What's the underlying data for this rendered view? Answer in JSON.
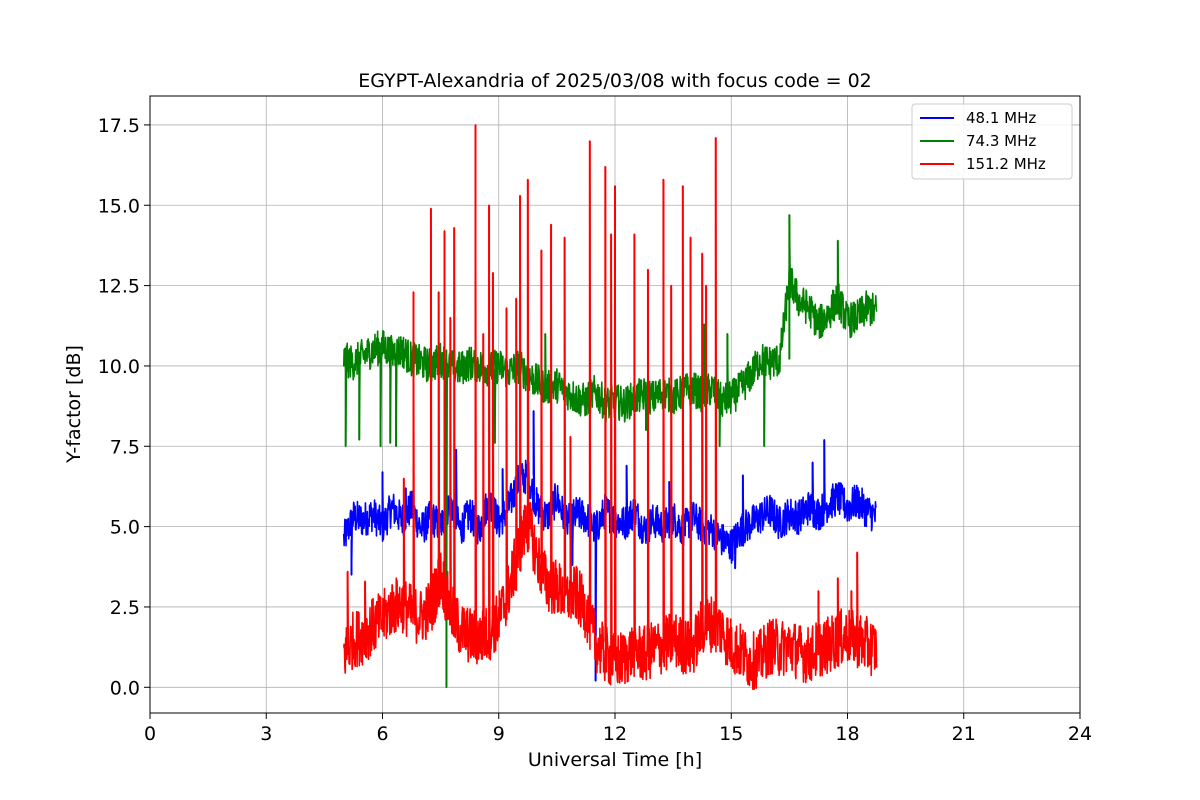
{
  "chart_data": {
    "type": "line",
    "title": "EGYPT-Alexandria of 2025/03/08 with focus code = 02",
    "xlabel": "Universal Time [h]",
    "ylabel": "Y-factor [dB]",
    "xlim": [
      0,
      24
    ],
    "ylim": [
      -0.8,
      18.4
    ],
    "xticks": [
      0,
      3,
      6,
      9,
      12,
      15,
      18,
      21,
      24
    ],
    "xtick_labels": [
      "0",
      "3",
      "6",
      "9",
      "12",
      "15",
      "18",
      "21",
      "24"
    ],
    "yticks": [
      0,
      2.5,
      5,
      7.5,
      10,
      12.5,
      15,
      17.5
    ],
    "ytick_labels": [
      "0.0",
      "2.5",
      "5.0",
      "7.5",
      "10.0",
      "12.5",
      "15.0",
      "17.5"
    ],
    "grid": true,
    "legend_position": "top-right",
    "series": [
      {
        "name": " 48.1 MHz",
        "color": "#0000ff",
        "x": [
          5.0,
          5.25,
          5.5,
          5.75,
          6.0,
          6.25,
          6.5,
          6.75,
          7.0,
          7.25,
          7.5,
          7.75,
          8.0,
          8.25,
          8.5,
          8.75,
          9.0,
          9.25,
          9.5,
          9.75,
          10.0,
          10.25,
          10.5,
          10.75,
          11.0,
          11.25,
          11.5,
          11.75,
          12.0,
          12.25,
          12.5,
          12.75,
          13.0,
          13.25,
          13.5,
          13.75,
          14.0,
          14.25,
          14.5,
          14.75,
          15.0,
          15.25,
          15.5,
          15.75,
          16.0,
          16.25,
          16.5,
          16.75,
          17.0,
          17.25,
          17.5,
          17.75,
          18.0,
          18.25,
          18.5,
          18.75
        ],
        "y": [
          4.6,
          5.3,
          5.2,
          5.4,
          5.0,
          5.6,
          5.2,
          5.6,
          4.9,
          5.3,
          5.0,
          5.8,
          4.9,
          5.4,
          4.9,
          5.9,
          5.1,
          5.6,
          6.4,
          6.6,
          5.6,
          5.3,
          5.9,
          5.1,
          5.4,
          5.3,
          4.9,
          5.5,
          5.2,
          5.1,
          5.5,
          4.9,
          5.2,
          5.0,
          5.3,
          4.9,
          5.3,
          5.0,
          4.9,
          4.6,
          4.4,
          4.9,
          5.1,
          5.3,
          5.5,
          5.1,
          5.4,
          5.3,
          5.6,
          5.4,
          5.7,
          5.9,
          5.6,
          5.8,
          5.5,
          5.3
        ],
        "spikes": [
          [
            5.2,
            3.5
          ],
          [
            6.0,
            6.7
          ],
          [
            6.6,
            6.2
          ],
          [
            7.9,
            7.4
          ],
          [
            9.1,
            6.8
          ],
          [
            9.9,
            8.6
          ],
          [
            10.9,
            3.8
          ],
          [
            11.5,
            0.2
          ],
          [
            12.3,
            6.9
          ],
          [
            13.4,
            6.4
          ],
          [
            15.1,
            3.7
          ],
          [
            15.3,
            6.6
          ],
          [
            17.1,
            7.0
          ],
          [
            17.4,
            7.7
          ]
        ]
      },
      {
        "name": " 74.3 MHz",
        "color": "#008000",
        "x": [
          5.0,
          5.25,
          5.5,
          5.75,
          6.0,
          6.25,
          6.5,
          6.75,
          7.0,
          7.25,
          7.5,
          7.75,
          8.0,
          8.25,
          8.5,
          8.75,
          9.0,
          9.25,
          9.5,
          9.75,
          10.0,
          10.25,
          10.5,
          10.75,
          11.0,
          11.25,
          11.5,
          11.75,
          12.0,
          12.25,
          12.5,
          12.75,
          13.0,
          13.25,
          13.5,
          13.75,
          14.0,
          14.25,
          14.5,
          14.75,
          15.0,
          15.25,
          15.5,
          15.75,
          16.0,
          16.25,
          16.5,
          16.75,
          17.0,
          17.25,
          17.5,
          17.75,
          18.0,
          18.25,
          18.5,
          18.75
        ],
        "y": [
          10.2,
          10.1,
          10.3,
          10.5,
          10.6,
          10.4,
          10.5,
          10.2,
          10.1,
          10.0,
          10.2,
          10.0,
          9.9,
          10.1,
          10.0,
          9.9,
          10.0,
          9.8,
          10.0,
          9.7,
          9.5,
          9.3,
          9.4,
          9.2,
          9.0,
          8.9,
          9.2,
          8.8,
          8.9,
          8.8,
          9.0,
          9.1,
          9.0,
          9.2,
          9.0,
          9.2,
          9.3,
          9.1,
          9.3,
          8.9,
          9.0,
          9.3,
          9.7,
          10.2,
          10.1,
          10.2,
          12.7,
          12.0,
          11.8,
          11.3,
          11.6,
          12.1,
          11.4,
          11.5,
          11.8,
          11.7
        ],
        "spikes": [
          [
            5.05,
            7.5
          ],
          [
            5.4,
            7.7
          ],
          [
            5.95,
            7.5
          ],
          [
            6.2,
            7.6
          ],
          [
            6.35,
            7.5
          ],
          [
            7.65,
            0.0
          ],
          [
            8.9,
            7.6
          ],
          [
            10.2,
            11.0
          ],
          [
            12.8,
            8.0
          ],
          [
            14.3,
            11.3
          ],
          [
            14.7,
            7.5
          ],
          [
            14.9,
            11.0
          ],
          [
            15.85,
            7.5
          ],
          [
            16.5,
            14.7
          ],
          [
            17.75,
            13.9
          ]
        ]
      },
      {
        "name": " 151.2 MHz",
        "color": "#ff0000",
        "x": [
          5.0,
          5.25,
          5.5,
          5.75,
          6.0,
          6.25,
          6.5,
          6.75,
          7.0,
          7.25,
          7.5,
          7.75,
          8.0,
          8.25,
          8.5,
          8.75,
          9.0,
          9.25,
          9.5,
          9.75,
          10.0,
          10.25,
          10.5,
          10.75,
          11.0,
          11.25,
          11.5,
          11.75,
          12.0,
          12.25,
          12.5,
          12.75,
          13.0,
          13.25,
          13.5,
          13.75,
          14.0,
          14.25,
          14.5,
          14.75,
          15.0,
          15.25,
          15.5,
          15.75,
          16.0,
          16.25,
          16.5,
          16.75,
          17.0,
          17.25,
          17.5,
          17.75,
          18.0,
          18.25,
          18.5,
          18.75
        ],
        "y": [
          1.0,
          1.5,
          1.6,
          1.9,
          2.1,
          2.5,
          2.6,
          2.3,
          2.2,
          2.5,
          3.5,
          2.4,
          1.8,
          1.6,
          1.5,
          1.7,
          2.1,
          3.0,
          4.2,
          5.2,
          4.0,
          3.2,
          3.1,
          2.8,
          2.9,
          2.4,
          1.4,
          1.0,
          0.8,
          0.9,
          1.2,
          1.0,
          1.2,
          1.3,
          1.5,
          1.3,
          1.2,
          1.9,
          2.0,
          1.8,
          1.3,
          1.1,
          0.8,
          0.9,
          1.3,
          1.2,
          1.3,
          1.1,
          1.0,
          1.2,
          1.3,
          1.5,
          1.6,
          1.5,
          1.3,
          1.2
        ],
        "spikes": [
          [
            5.1,
            3.6
          ],
          [
            5.55,
            3.3
          ],
          [
            6.55,
            6.5
          ],
          [
            6.8,
            12.3
          ],
          [
            7.25,
            14.9
          ],
          [
            7.45,
            12.3
          ],
          [
            7.6,
            14.2
          ],
          [
            7.75,
            11.5
          ],
          [
            7.85,
            14.3
          ],
          [
            8.4,
            17.5
          ],
          [
            8.6,
            11.0
          ],
          [
            8.75,
            15.0
          ],
          [
            8.85,
            12.9
          ],
          [
            9.2,
            11.8
          ],
          [
            9.45,
            12.1
          ],
          [
            9.55,
            15.3
          ],
          [
            9.75,
            15.8
          ],
          [
            10.1,
            13.6
          ],
          [
            10.35,
            14.4
          ],
          [
            10.7,
            14.0
          ],
          [
            10.85,
            7.8
          ],
          [
            11.35,
            17.0
          ],
          [
            11.75,
            16.2
          ],
          [
            11.9,
            14.1
          ],
          [
            12.0,
            15.6
          ],
          [
            12.5,
            14.1
          ],
          [
            12.85,
            13.0
          ],
          [
            13.25,
            15.8
          ],
          [
            13.45,
            12.5
          ],
          [
            13.75,
            15.6
          ],
          [
            13.95,
            14.0
          ],
          [
            14.25,
            13.5
          ],
          [
            14.35,
            12.5
          ],
          [
            14.6,
            17.1
          ],
          [
            17.25,
            3.0
          ],
          [
            17.75,
            3.4
          ],
          [
            18.1,
            3.0
          ],
          [
            18.25,
            4.2
          ]
        ]
      }
    ]
  }
}
